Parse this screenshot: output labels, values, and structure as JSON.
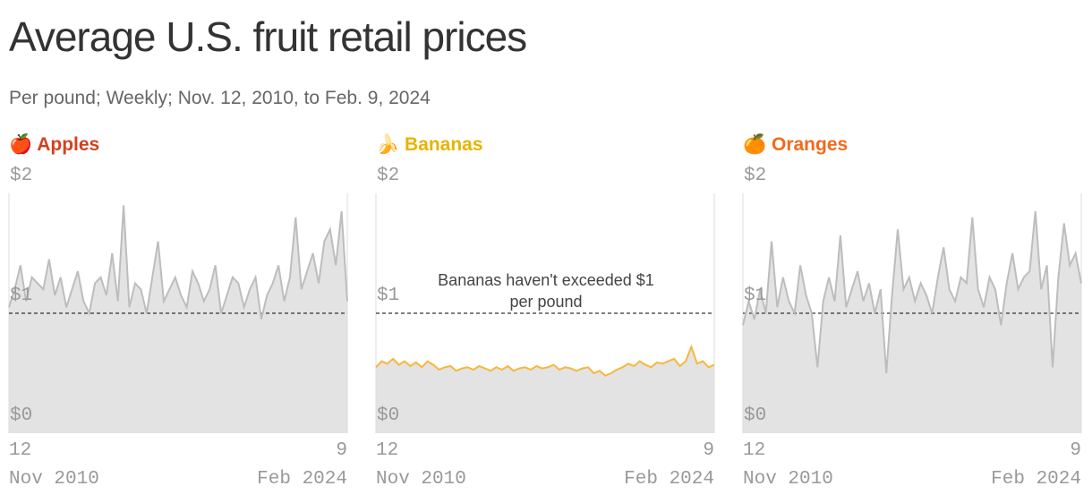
{
  "title": "Average U.S. fruit retail prices",
  "subtitle": "Per pound; Weekly; Nov. 12, 2010, to Feb. 9, 2024",
  "chart_data": [
    {
      "type": "area",
      "title": "🍎 Apples",
      "title_color": "#d4411f",
      "color": "#bdbdbd",
      "categories": [
        "12\nNov 2010",
        null,
        null,
        null,
        null,
        null,
        null,
        null,
        null,
        null,
        null,
        null,
        null,
        null,
        null,
        null,
        null,
        null,
        null,
        null,
        null,
        null,
        null,
        null,
        null,
        null,
        null,
        null,
        null,
        null,
        null,
        null,
        null,
        null,
        null,
        null,
        null,
        null,
        null,
        null,
        null,
        null,
        null,
        null,
        null,
        null,
        null,
        null,
        null,
        null,
        null,
        null,
        null,
        null,
        null,
        null,
        null,
        null,
        null,
        "9\nFeb 2024"
      ],
      "values": [
        1.05,
        1.2,
        1.4,
        1.1,
        1.3,
        1.25,
        1.2,
        1.45,
        1.15,
        1.3,
        1.05,
        1.2,
        1.35,
        1.1,
        1.0,
        1.25,
        1.3,
        1.15,
        1.5,
        1.1,
        1.9,
        1.05,
        1.25,
        1.2,
        1.0,
        1.3,
        1.6,
        1.1,
        1.2,
        1.3,
        1.15,
        1.05,
        1.35,
        1.25,
        1.1,
        1.2,
        1.4,
        1.0,
        1.15,
        1.3,
        1.25,
        1.05,
        1.2,
        1.3,
        0.95,
        1.15,
        1.25,
        1.4,
        1.1,
        1.3,
        1.8,
        1.2,
        1.35,
        1.5,
        1.25,
        1.6,
        1.7,
        1.4,
        1.85,
        1.1
      ],
      "ylim": [
        0,
        2
      ],
      "yticks": [
        {
          "value": 0,
          "label": "$0"
        },
        {
          "value": 1,
          "label": "$1"
        },
        {
          "value": 2,
          "label": "$2"
        }
      ],
      "reference_line": 1
    },
    {
      "type": "area",
      "title": "🍌 Bananas",
      "title_color": "#e8b400",
      "color": "#f5b83d",
      "categories": [
        "12\nNov 2010",
        null,
        null,
        null,
        null,
        null,
        null,
        null,
        null,
        null,
        null,
        null,
        null,
        null,
        null,
        null,
        null,
        null,
        null,
        null,
        null,
        null,
        null,
        null,
        null,
        null,
        null,
        null,
        null,
        null,
        null,
        null,
        null,
        null,
        null,
        null,
        null,
        null,
        null,
        null,
        null,
        null,
        null,
        null,
        null,
        null,
        null,
        null,
        null,
        null,
        null,
        null,
        null,
        null,
        null,
        null,
        null,
        null,
        null,
        "9\nFeb 2024"
      ],
      "values": [
        0.55,
        0.6,
        0.58,
        0.62,
        0.57,
        0.6,
        0.56,
        0.59,
        0.55,
        0.6,
        0.57,
        0.53,
        0.55,
        0.56,
        0.52,
        0.54,
        0.55,
        0.53,
        0.56,
        0.54,
        0.52,
        0.55,
        0.53,
        0.56,
        0.52,
        0.54,
        0.55,
        0.53,
        0.56,
        0.54,
        0.55,
        0.57,
        0.53,
        0.55,
        0.54,
        0.52,
        0.54,
        0.55,
        0.5,
        0.52,
        0.48,
        0.5,
        0.53,
        0.55,
        0.58,
        0.56,
        0.6,
        0.57,
        0.55,
        0.59,
        0.58,
        0.6,
        0.62,
        0.56,
        0.6,
        0.72,
        0.58,
        0.6,
        0.55,
        0.57
      ],
      "ylim": [
        0,
        2
      ],
      "yticks": [
        {
          "value": 0,
          "label": "$0"
        },
        {
          "value": 1,
          "label": "$1"
        },
        {
          "value": 2,
          "label": "$2"
        }
      ],
      "reference_line": 1,
      "annotation": "Bananas haven't exceeded $1\nper pound"
    },
    {
      "type": "area",
      "title": "🍊 Oranges",
      "title_color": "#f26a1b",
      "color": "#bdbdbd",
      "categories": [
        "12\nNov 2010",
        null,
        null,
        null,
        null,
        null,
        null,
        null,
        null,
        null,
        null,
        null,
        null,
        null,
        null,
        null,
        null,
        null,
        null,
        null,
        null,
        null,
        null,
        null,
        null,
        null,
        null,
        null,
        null,
        null,
        null,
        null,
        null,
        null,
        null,
        null,
        null,
        null,
        null,
        null,
        null,
        null,
        null,
        null,
        null,
        null,
        null,
        null,
        null,
        null,
        null,
        null,
        null,
        null,
        null,
        null,
        null,
        null,
        null,
        "9\nFeb 2024"
      ],
      "values": [
        0.9,
        1.1,
        0.95,
        1.2,
        1.0,
        1.6,
        1.05,
        1.3,
        1.1,
        1.0,
        1.4,
        1.15,
        1.0,
        0.55,
        1.1,
        1.3,
        1.1,
        1.65,
        1.05,
        1.2,
        1.35,
        1.1,
        1.25,
        1.0,
        1.2,
        0.5,
        1.15,
        1.7,
        1.2,
        1.3,
        1.1,
        1.25,
        1.15,
        1.0,
        1.3,
        1.55,
        1.2,
        1.1,
        1.3,
        1.25,
        1.8,
        1.2,
        1.05,
        1.3,
        1.2,
        0.9,
        1.25,
        1.5,
        1.2,
        1.3,
        1.35,
        1.85,
        1.2,
        1.4,
        0.55,
        1.3,
        1.75,
        1.4,
        1.5,
        1.25
      ],
      "ylim": [
        0,
        2
      ],
      "yticks": [
        {
          "value": 0,
          "label": "$0"
        },
        {
          "value": 1,
          "label": "$1"
        },
        {
          "value": 2,
          "label": "$2"
        }
      ],
      "reference_line": 1
    }
  ]
}
